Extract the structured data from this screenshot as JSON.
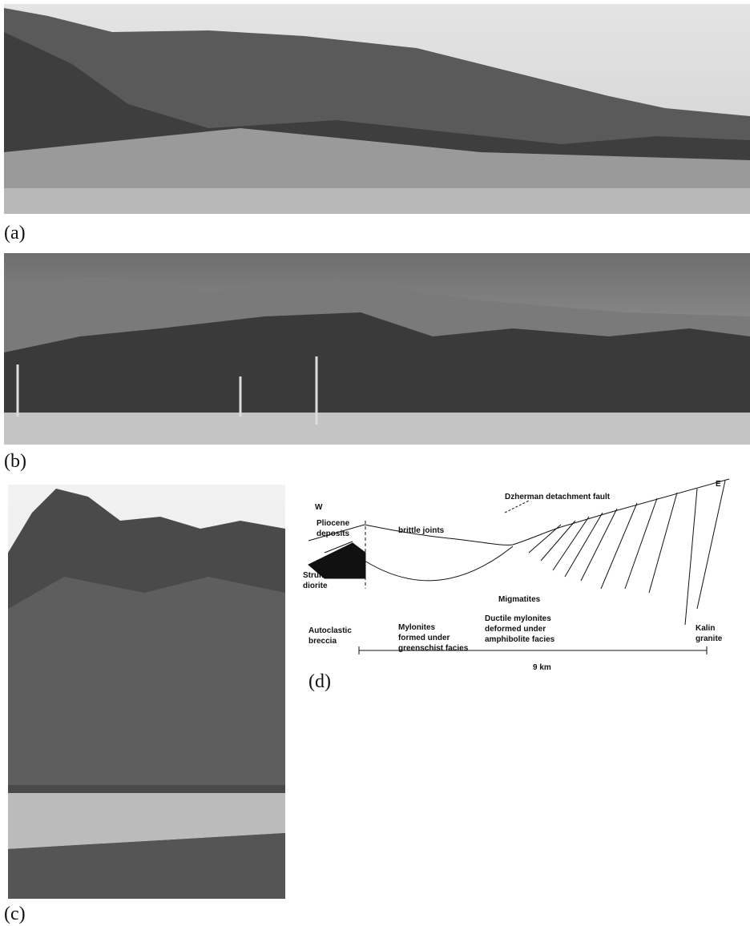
{
  "panels": [
    {
      "label": "(a)"
    },
    {
      "label": "(b)"
    },
    {
      "label": "(c)"
    },
    {
      "label": "(d)"
    }
  ],
  "diagram": {
    "labels": [
      {
        "lines": [
          "W"
        ]
      },
      {
        "lines": [
          "Dzherman detachment fault"
        ]
      },
      {
        "lines": [
          "E"
        ]
      },
      {
        "lines": [
          "Pliocene",
          "deposits"
        ]
      },
      {
        "lines": [
          "brittle joints"
        ]
      },
      {
        "lines": [
          "Migmatites"
        ]
      },
      {
        "lines": [
          "Struma",
          "diorite"
        ]
      },
      {
        "lines": [
          "Ductile mylonites",
          "deformed under",
          "amphibolite facies"
        ]
      },
      {
        "lines": [
          "Mylonites",
          "formed under",
          "greenschist facies"
        ]
      },
      {
        "lines": [
          "Autoclastic",
          "breccia"
        ]
      },
      {
        "lines": [
          "Kalin",
          "granite"
        ]
      }
    ],
    "scale": "9 km"
  }
}
